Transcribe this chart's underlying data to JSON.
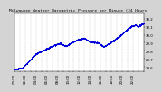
{
  "title": "Milwaukee Weather Barometric Pressure per Minute (24 Hours)",
  "title_fontsize": 3.2,
  "bg_color": "#d4d4d4",
  "plot_bg_color": "#ffffff",
  "dot_color": "#0000dd",
  "marker_size": 0.6,
  "grid_color": "#aaaaaa",
  "grid_style": "--",
  "ylim": [
    29.55,
    30.28
  ],
  "ytick_values": [
    29.6,
    29.7,
    29.8,
    29.9,
    30.0,
    30.1,
    30.2
  ],
  "ytick_labels": [
    "29.6",
    "29.7",
    "29.8",
    "29.9",
    "30.0",
    "30.1",
    "30.2"
  ],
  "tick_fontsize": 2.8,
  "num_points": 1440,
  "y_axis_side": "right"
}
